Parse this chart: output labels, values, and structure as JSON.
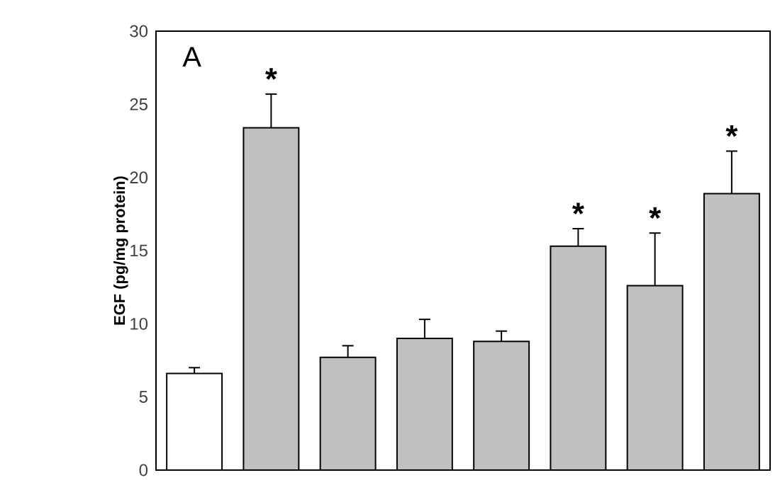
{
  "chart_data": {
    "type": "bar",
    "ylabel": "EGF (pg/mg protein)",
    "annotations": [
      "A"
    ],
    "categories": [
      null,
      null,
      null,
      null,
      null,
      null,
      null,
      null
    ],
    "values": [
      6.6,
      23.4,
      7.7,
      9.0,
      8.8,
      15.3,
      12.6,
      18.9
    ],
    "errors": [
      [
        6.6,
        7.0
      ],
      [
        23.4,
        25.7
      ],
      [
        7.7,
        8.5
      ],
      [
        9.0,
        10.3
      ],
      [
        8.8,
        9.5
      ],
      [
        15.3,
        16.5
      ],
      [
        12.6,
        16.2
      ],
      [
        18.9,
        21.8
      ]
    ],
    "value_labels": [
      null,
      "*",
      null,
      null,
      null,
      "*",
      "*",
      "*"
    ],
    "colors": [
      "#ffffff",
      "#c0c0c0",
      "#c0c0c0",
      "#c0c0c0",
      "#c0c0c0",
      "#c0c0c0",
      "#c0c0c0",
      "#c0c0c0"
    ],
    "ylim": [
      0,
      30
    ],
    "yticks": [
      0,
      5,
      10,
      15,
      20,
      25,
      30
    ],
    "grid": false,
    "tick_labels": "y"
  }
}
